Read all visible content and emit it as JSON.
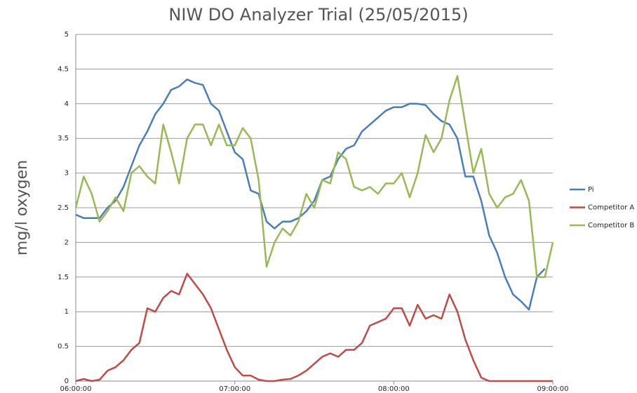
{
  "chart_data": {
    "type": "line",
    "title": "NIW DO Analyzer Trial (25/05/2015)",
    "y_label": "mg/l oxygen",
    "x": [
      "06:00:00",
      "06:03:00",
      "06:06:00",
      "06:09:00",
      "06:12:00",
      "06:15:00",
      "06:18:00",
      "06:21:00",
      "06:24:00",
      "06:27:00",
      "06:30:00",
      "06:33:00",
      "06:36:00",
      "06:39:00",
      "06:42:00",
      "06:45:00",
      "06:48:00",
      "06:51:00",
      "06:54:00",
      "06:57:00",
      "07:00:00",
      "07:03:00",
      "07:06:00",
      "07:09:00",
      "07:12:00",
      "07:15:00",
      "07:18:00",
      "07:21:00",
      "07:24:00",
      "07:27:00",
      "07:30:00",
      "07:33:00",
      "07:36:00",
      "07:39:00",
      "07:42:00",
      "07:45:00",
      "07:48:00",
      "07:51:00",
      "07:54:00",
      "07:57:00",
      "08:00:00",
      "08:03:00",
      "08:06:00",
      "08:09:00",
      "08:12:00",
      "08:15:00",
      "08:18:00",
      "08:21:00",
      "08:24:00",
      "08:27:00",
      "08:30:00",
      "08:33:00",
      "08:36:00",
      "08:39:00",
      "08:42:00",
      "08:45:00",
      "08:48:00",
      "08:51:00",
      "08:54:00",
      "08:57:00",
      "09:00:00"
    ],
    "series": [
      {
        "name": "Pi",
        "color": "#4a7ebb",
        "values": [
          2.4,
          2.35,
          2.35,
          2.35,
          2.5,
          2.6,
          2.8,
          3.1,
          3.4,
          3.6,
          3.85,
          4.0,
          4.2,
          4.25,
          4.35,
          4.3,
          4.27,
          4.0,
          3.9,
          3.6,
          3.3,
          3.2,
          2.75,
          2.7,
          2.3,
          2.2,
          2.3,
          2.3,
          2.35,
          2.45,
          2.6,
          2.9,
          2.95,
          3.2,
          3.35,
          3.4,
          3.6,
          3.7,
          3.8,
          3.9,
          3.95,
          3.95,
          4.0,
          4.0,
          3.98,
          3.85,
          3.75,
          3.7,
          3.5,
          2.95,
          2.95,
          2.6,
          2.1,
          1.85,
          1.5,
          1.25,
          1.15,
          1.03,
          1.5,
          1.62,
          null
        ]
      },
      {
        "name": "Competitor A",
        "color": "#be4b48",
        "values": [
          0,
          0.03,
          0,
          0.02,
          0.15,
          0.2,
          0.3,
          0.45,
          0.55,
          1.05,
          1.0,
          1.2,
          1.3,
          1.25,
          1.55,
          1.4,
          1.25,
          1.05,
          0.75,
          0.45,
          0.2,
          0.08,
          0.08,
          0.02,
          0,
          0,
          0.02,
          0.03,
          0.08,
          0.15,
          0.25,
          0.35,
          0.4,
          0.35,
          0.45,
          0.45,
          0.55,
          0.8,
          0.85,
          0.9,
          1.05,
          1.05,
          0.8,
          1.1,
          0.9,
          0.95,
          0.9,
          1.25,
          1.0,
          0.6,
          0.3,
          0.05,
          0,
          0,
          0,
          0,
          0,
          0,
          0,
          0,
          0
        ]
      },
      {
        "name": "Competitor B",
        "color": "#98b954",
        "values": [
          2.5,
          2.95,
          2.7,
          2.3,
          2.45,
          2.65,
          2.45,
          3.0,
          3.1,
          2.95,
          2.85,
          3.7,
          3.3,
          2.85,
          3.5,
          3.7,
          3.7,
          3.4,
          3.7,
          3.4,
          3.4,
          3.65,
          3.5,
          2.9,
          1.65,
          2.0,
          2.2,
          2.1,
          2.3,
          2.7,
          2.5,
          2.9,
          2.85,
          3.3,
          3.2,
          2.8,
          2.75,
          2.8,
          2.7,
          2.85,
          2.85,
          3.0,
          2.65,
          3.0,
          3.55,
          3.3,
          3.5,
          4.05,
          4.4,
          3.7,
          3.0,
          3.35,
          2.7,
          2.5,
          2.65,
          2.7,
          2.9,
          2.6,
          1.5,
          1.5,
          2.0
        ]
      }
    ],
    "xlim": [
      "06:00:00",
      "09:00:00"
    ],
    "xticks": [
      "06:00:00",
      "07:00:00",
      "08:00:00",
      "09:00:00"
    ],
    "ylim": [
      0,
      5
    ],
    "yticks": [
      0,
      0.5,
      1,
      1.5,
      2,
      2.5,
      3,
      3.5,
      4,
      4.5,
      5
    ],
    "grid": true,
    "legend": "right"
  }
}
